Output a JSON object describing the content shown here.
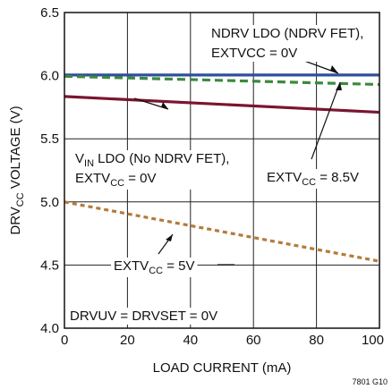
{
  "chart_data": {
    "type": "line",
    "xlabel": "LOAD CURRENT (mA)",
    "ylabel": {
      "a": "DRV",
      "a_sub": "CC",
      "b": " VOLTAGE (V)"
    },
    "xlim": [
      0,
      100
    ],
    "ylim": [
      4.0,
      6.5
    ],
    "x_ticks": [
      "0",
      "20",
      "40",
      "60",
      "80",
      "100"
    ],
    "y_ticks": [
      "4.0",
      "4.5",
      "5.0",
      "5.5",
      "6.0",
      "6.5"
    ],
    "grid": true,
    "series": [
      {
        "x": [
          0,
          100
        ],
        "y": [
          6.005,
          6.005
        ],
        "color": "#2f4f9e",
        "style": "solid",
        "marker": "blue-line"
      },
      {
        "x": [
          0,
          100
        ],
        "y": [
          5.995,
          5.93
        ],
        "color": "#3c8a3c",
        "style": "dashed",
        "marker": "green-line"
      },
      {
        "x": [
          0,
          100
        ],
        "y": [
          5.835,
          5.71
        ],
        "color": "#7a1530",
        "style": "solid",
        "marker": "red-line"
      },
      {
        "x": [
          0,
          100
        ],
        "y": [
          5.0,
          4.53
        ],
        "color": "#b57a3a",
        "style": "dotted",
        "marker": "orange-line"
      }
    ],
    "annotations": [
      {
        "lines": [
          [
            {
              "t": "NDRV LDO (NDRV FET),"
            }
          ],
          [
            {
              "t": "EXTVCC = 0V"
            }
          ]
        ]
      },
      {
        "lines": [
          [
            {
              "t": "V"
            },
            {
              "t": "IN",
              "sub": true
            },
            {
              "t": " LDO (No NDRV FET),"
            }
          ],
          [
            {
              "t": "EXTV"
            },
            {
              "t": "CC",
              "sub": true
            },
            {
              "t": " = 0V"
            }
          ]
        ]
      },
      {
        "lines": [
          [
            {
              "t": "EXTV"
            },
            {
              "t": "CC",
              "sub": true
            },
            {
              "t": " = 8.5V"
            }
          ]
        ]
      },
      {
        "lines": [
          [
            {
              "t": "EXTV"
            },
            {
              "t": "CC",
              "sub": true
            },
            {
              "t": " = 5V"
            }
          ]
        ]
      },
      {
        "lines": [
          [
            {
              "t": "DRVUV = DRVSET = 0V"
            }
          ]
        ]
      }
    ],
    "figure_id": "7801 G10"
  }
}
